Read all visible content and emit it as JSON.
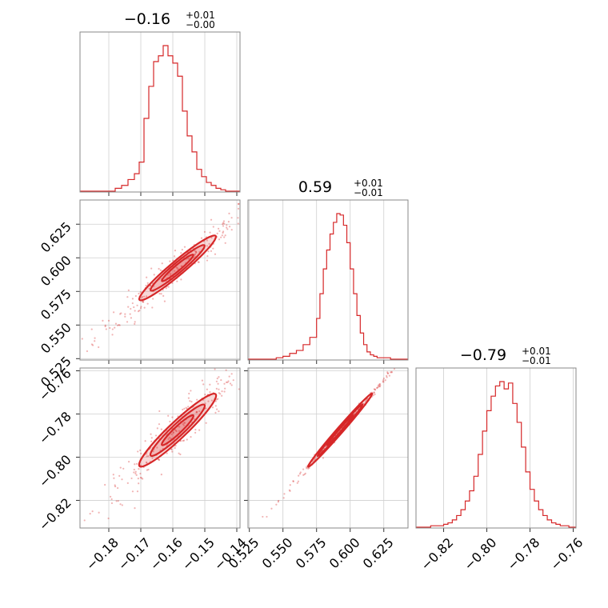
{
  "chart_data": {
    "type": "corner",
    "color": "#d62728",
    "parameters": [
      {
        "title": {
          "main": "−0.16",
          "plus": "+0.01",
          "minus": "−0.00"
        },
        "range": [
          -0.189,
          -0.139
        ],
        "ticks": [
          -0.18,
          -0.17,
          -0.16,
          -0.15,
          -0.14
        ],
        "tick_labels": [
          "−0.18",
          "−0.17",
          "−0.16",
          "−0.15",
          "−0.14"
        ],
        "hist_edges": [
          -0.178,
          -0.176,
          -0.174,
          -0.172,
          -0.1705,
          -0.169,
          -0.1675,
          -0.166,
          -0.1645,
          -0.163,
          -0.1615,
          -0.16,
          -0.1585,
          -0.157,
          -0.1555,
          -0.154,
          -0.1525,
          -0.151,
          -0.1495,
          -0.148,
          -0.1465,
          -0.145,
          -0.1435,
          -0.142
        ],
        "hist_counts": [
          2,
          4,
          8,
          12,
          20,
          50,
          72,
          89,
          93,
          100,
          93,
          88,
          79,
          55,
          38,
          27,
          15,
          10,
          6,
          4,
          2,
          1,
          0
        ]
      },
      {
        "title": {
          "main": "0.59",
          "plus": "+0.01",
          "minus": "−0.01"
        },
        "range": [
          0.524,
          0.643
        ],
        "ticks": [
          0.525,
          0.55,
          0.575,
          0.6,
          0.625
        ],
        "tick_labels": [
          "0.525",
          "0.550",
          "0.575",
          "0.600",
          "0.625"
        ],
        "hist_edges": [
          0.545,
          0.55,
          0.555,
          0.56,
          0.565,
          0.57,
          0.575,
          0.5775,
          0.58,
          0.5825,
          0.585,
          0.5875,
          0.59,
          0.5925,
          0.595,
          0.5975,
          0.6,
          0.6025,
          0.605,
          0.6075,
          0.61,
          0.6125,
          0.615,
          0.6175,
          0.62,
          0.625,
          0.63
        ],
        "hist_counts": [
          1,
          2,
          4,
          6,
          10,
          15,
          28,
          45,
          62,
          75,
          86,
          94,
          100,
          99,
          92,
          80,
          62,
          45,
          30,
          18,
          10,
          5,
          3,
          2,
          1,
          1
        ]
      },
      {
        "title": {
          "main": "−0.79",
          "plus": "+0.01",
          "minus": "−0.01"
        },
        "range": [
          -0.8328,
          -0.7587
        ],
        "ticks": [
          -0.82,
          -0.8,
          -0.78,
          -0.76
        ],
        "tick_labels": [
          "−0.82",
          "−0.80",
          "−0.78",
          "−0.76"
        ],
        "hist_edges": [
          -0.826,
          -0.823,
          -0.82,
          -0.818,
          -0.816,
          -0.814,
          -0.812,
          -0.81,
          -0.808,
          -0.806,
          -0.804,
          -0.802,
          -0.8,
          -0.798,
          -0.796,
          -0.794,
          -0.792,
          -0.79,
          -0.788,
          -0.786,
          -0.784,
          -0.782,
          -0.78,
          -0.778,
          -0.776,
          -0.774,
          -0.772,
          -0.77,
          -0.768,
          -0.766,
          -0.764,
          -0.762
        ],
        "hist_counts": [
          1,
          1,
          2,
          3,
          5,
          8,
          12,
          18,
          25,
          35,
          50,
          66,
          80,
          90,
          97,
          100,
          95,
          99,
          85,
          72,
          55,
          38,
          26,
          18,
          12,
          8,
          5,
          3,
          2,
          1,
          1
        ]
      }
    ],
    "correlations": [
      {
        "row": 1,
        "col": 0,
        "center": [
          -0.1585,
          0.5925
        ],
        "slope": 2.0,
        "halfwidth": 0.007,
        "thickness": 0.004,
        "spread": 0.013,
        "scatter_span": 0.025
      },
      {
        "row": 2,
        "col": 0,
        "center": [
          -0.1585,
          -0.7875
        ],
        "slope": 1.4,
        "halfwidth": 0.007,
        "thickness": 0.0032,
        "spread": 0.013,
        "scatter_span": 0.025
      },
      {
        "row": 2,
        "col": 1,
        "center": [
          0.5925,
          -0.7875
        ],
        "slope": 0.714,
        "halfwidth": 0.014,
        "thickness": 0.0006,
        "spread": 0.022,
        "scatter_span": 0.045
      }
    ]
  }
}
